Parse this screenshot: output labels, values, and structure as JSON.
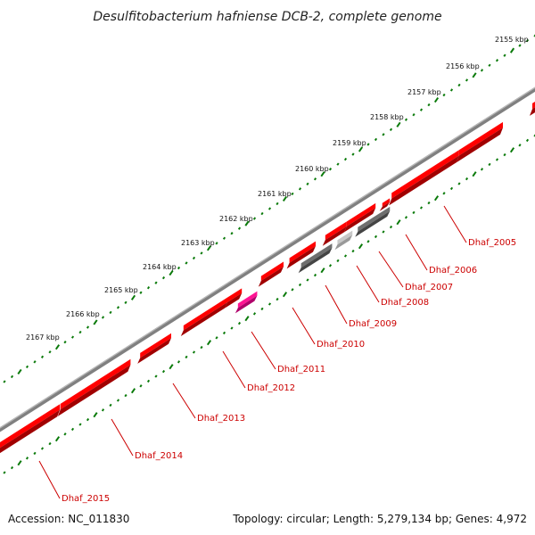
{
  "title": "Desulfitobacterium hafniense DCB-2, complete genome",
  "footer": {
    "accession": "Accession: NC_011830",
    "summary": "Topology: circular; Length: 5,279,134 bp; Genes: 4,972"
  },
  "colors": {
    "gene_forward": "#ff0000",
    "gene_special": "#ff1493",
    "gene_gray": "#6e6e6e",
    "gene_lightgray": "#c8c8c8",
    "backbone": "#808080",
    "ticks": "#0a7a0a",
    "label": "#cc0000"
  },
  "scale_labels": [
    "2155 kbp",
    "2156 kbp",
    "2157 kbp",
    "2158 kbp",
    "2159 kbp",
    "2160 kbp",
    "2161 kbp",
    "2162 kbp",
    "2163 kbp",
    "2164 kbp",
    "2165 kbp",
    "2166 kbp",
    "2167 kbp"
  ],
  "genes": [
    {
      "label": "Dhaf_2005",
      "type": "forward"
    },
    {
      "label": "Dhaf_2006",
      "type": "forward"
    },
    {
      "label": "Dhaf_2007",
      "type": "gray"
    },
    {
      "label": "Dhaf_2008",
      "type": "lightgray"
    },
    {
      "label": "Dhaf_2009",
      "type": "gray"
    },
    {
      "label": "Dhaf_2010",
      "type": "forward"
    },
    {
      "label": "Dhaf_2011",
      "type": "special"
    },
    {
      "label": "Dhaf_2012",
      "type": "forward"
    },
    {
      "label": "Dhaf_2013",
      "type": "forward"
    },
    {
      "label": "Dhaf_2014",
      "type": "forward"
    },
    {
      "label": "Dhaf_2015",
      "type": "forward"
    }
  ]
}
